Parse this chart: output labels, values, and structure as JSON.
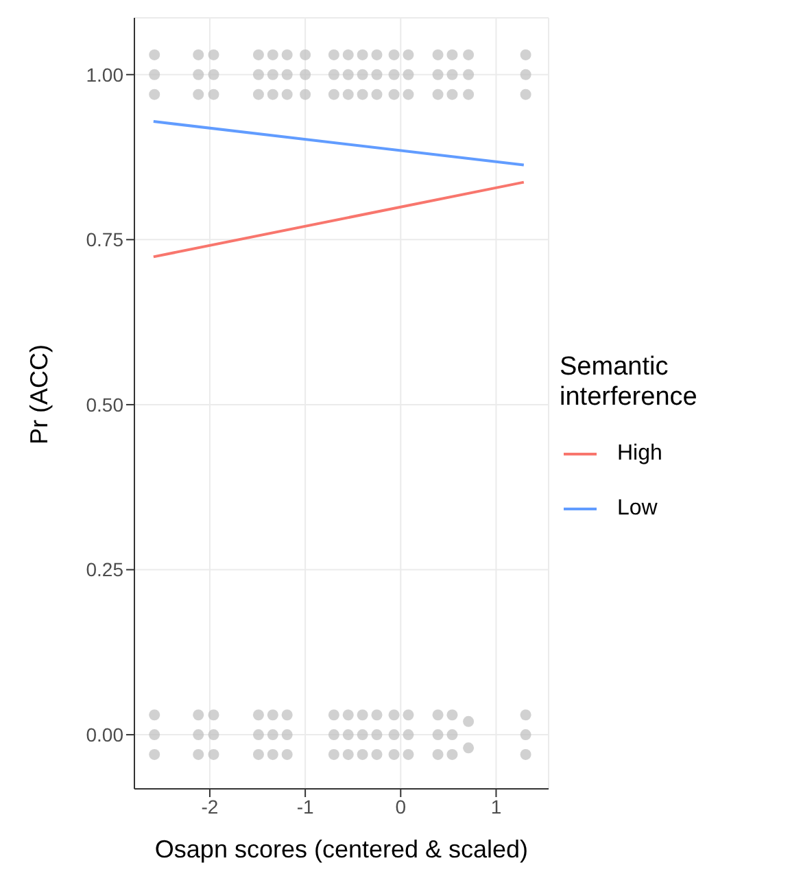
{
  "chart_data": {
    "type": "line",
    "xlabel": "Osapn scores (centered & scaled)",
    "ylabel": "Pr (ACC)",
    "legend_title": "Semantic interference",
    "legend": "right",
    "grid": true,
    "xlim": [
      -2.79,
      1.55
    ],
    "xticks": [
      -2,
      -1,
      0,
      1
    ],
    "ylim": [
      -0.082,
      1.086
    ],
    "yticks": [
      {
        "value": 0,
        "label": "0.00"
      },
      {
        "value": 0.25,
        "label": "0.25"
      },
      {
        "value": 0.5,
        "label": "0.50"
      },
      {
        "value": 0.75,
        "label": "0.75"
      },
      {
        "value": 1,
        "label": "1.00"
      }
    ],
    "series": [
      {
        "type": "scatter",
        "marker": "circle",
        "color": "#bebebe",
        "x": [
          -2.58,
          -2.58,
          -2.58,
          -2.58,
          -2.58,
          -2.58,
          -2.12,
          -2.12,
          -2.12,
          -2.12,
          -2.12,
          -2.12,
          -1.96,
          -1.96,
          -1.96,
          -1.96,
          -1.96,
          -1.96,
          -1.49,
          -1.49,
          -1.49,
          -1.49,
          -1.49,
          -1.49,
          -1.34,
          -1.34,
          -1.34,
          -1.34,
          -1.34,
          -1.34,
          -1.19,
          -1.19,
          -1.19,
          -1.19,
          -1.19,
          -1.19,
          -1.0,
          -1.0,
          -1.0,
          -0.7,
          -0.7,
          -0.7,
          -0.7,
          -0.7,
          -0.7,
          -0.55,
          -0.55,
          -0.55,
          -0.55,
          -0.55,
          -0.55,
          -0.4,
          -0.4,
          -0.4,
          -0.4,
          -0.4,
          -0.4,
          -0.25,
          -0.25,
          -0.25,
          -0.25,
          -0.25,
          -0.25,
          -0.07,
          -0.07,
          -0.07,
          -0.07,
          -0.07,
          -0.07,
          0.08,
          0.08,
          0.08,
          0.08,
          0.08,
          0.08,
          0.39,
          0.39,
          0.39,
          0.39,
          0.39,
          0.39,
          0.54,
          0.54,
          0.54,
          0.54,
          0.54,
          0.54,
          0.71,
          0.71,
          0.71,
          0.71,
          0.71,
          1.31,
          1.31,
          1.31,
          1.31,
          1.31,
          1.31
        ],
        "values": [
          0.97,
          1.0,
          1.03,
          -0.03,
          0,
          0.03,
          0.97,
          1.0,
          1.03,
          -0.03,
          0,
          0.03,
          0.97,
          1.0,
          1.03,
          -0.03,
          0,
          0.03,
          0.97,
          1.0,
          1.03,
          -0.03,
          0,
          0.03,
          0.97,
          1.0,
          1.03,
          -0.03,
          0,
          0.03,
          0.97,
          1.0,
          1.03,
          -0.03,
          0,
          0.03,
          0.97,
          1.0,
          1.03,
          0.97,
          1.0,
          1.03,
          -0.03,
          0,
          0.03,
          0.97,
          1.0,
          1.03,
          -0.03,
          0,
          0.03,
          0.97,
          1.0,
          1.03,
          -0.03,
          0,
          0.03,
          0.97,
          1.0,
          1.03,
          -0.03,
          0,
          0.03,
          0.97,
          1.0,
          1.03,
          -0.03,
          0,
          0.03,
          0.97,
          1.0,
          1.03,
          -0.03,
          0,
          0.03,
          0.97,
          1.0,
          1.03,
          -0.03,
          0,
          0.03,
          0.97,
          1.0,
          1.03,
          -0.03,
          0,
          0.03,
          0.97,
          1.0,
          1.03,
          -0.02,
          0.02,
          0.97,
          1.0,
          1.03,
          -0.03,
          0,
          0.03
        ]
      },
      {
        "name": "High",
        "color": "#f8766d",
        "x": [
          -2.59,
          1.29
        ],
        "values": [
          0.724,
          0.837
        ]
      },
      {
        "name": "Low",
        "color": "#619cff",
        "x": [
          -2.59,
          1.29
        ],
        "values": [
          0.929,
          0.863
        ]
      }
    ]
  }
}
